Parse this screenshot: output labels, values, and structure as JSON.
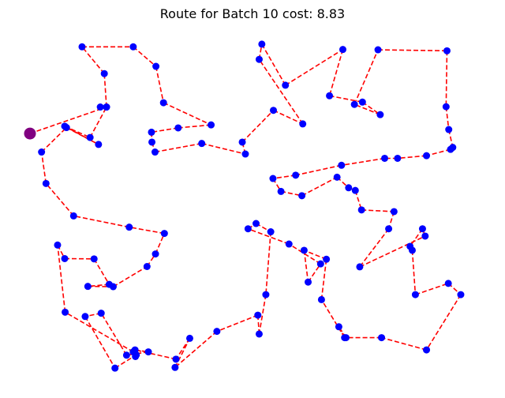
{
  "chart_data": {
    "type": "line",
    "title": "Route for Batch 10 cost: 8.83",
    "xlabel": "",
    "ylabel": "",
    "axes_visible": false,
    "grid": false,
    "depot_color": "#800080",
    "node_color": "#0000ff",
    "route_color": "#ff0000",
    "route_style": "dashed",
    "depot": [
      0.0,
      0.723
    ],
    "route": [
      [
        0.0,
        0.723
      ],
      [
        0.172,
        0.803
      ],
      [
        0.167,
        0.904
      ],
      [
        0.117,
        0.985
      ],
      [
        0.232,
        0.985
      ],
      [
        0.283,
        0.926
      ],
      [
        0.3,
        0.816
      ],
      [
        0.407,
        0.749
      ],
      [
        0.333,
        0.74
      ],
      [
        0.273,
        0.727
      ],
      [
        0.274,
        0.697
      ],
      [
        0.281,
        0.667
      ],
      [
        0.386,
        0.693
      ],
      [
        0.484,
        0.661
      ],
      [
        0.477,
        0.697
      ],
      [
        0.547,
        0.793
      ],
      [
        0.613,
        0.752
      ],
      [
        0.515,
        0.947
      ],
      [
        0.521,
        0.993
      ],
      [
        0.574,
        0.869
      ],
      [
        0.703,
        0.977
      ],
      [
        0.673,
        0.837
      ],
      [
        0.747,
        0.818
      ],
      [
        0.787,
        0.78
      ],
      [
        0.729,
        0.811
      ],
      [
        0.782,
        0.976
      ],
      [
        0.937,
        0.973
      ],
      [
        0.935,
        0.804
      ],
      [
        0.941,
        0.735
      ],
      [
        0.95,
        0.681
      ],
      [
        0.945,
        0.675
      ],
      [
        0.891,
        0.656
      ],
      [
        0.826,
        0.648
      ],
      [
        0.797,
        0.648
      ],
      [
        0.7,
        0.627
      ],
      [
        0.597,
        0.597
      ],
      [
        0.546,
        0.587
      ],
      [
        0.564,
        0.548
      ],
      [
        0.611,
        0.535
      ],
      [
        0.69,
        0.591
      ],
      [
        0.716,
        0.559
      ],
      [
        0.731,
        0.551
      ],
      [
        0.745,
        0.492
      ],
      [
        0.818,
        0.487
      ],
      [
        0.806,
        0.435
      ],
      [
        0.741,
        0.32
      ],
      [
        0.888,
        0.413
      ],
      [
        0.882,
        0.435
      ],
      [
        0.854,
        0.382
      ],
      [
        0.859,
        0.37
      ],
      [
        0.866,
        0.236
      ],
      [
        0.94,
        0.27
      ],
      [
        0.968,
        0.236
      ],
      [
        0.891,
        0.069
      ],
      [
        0.79,
        0.106
      ],
      [
        0.71,
        0.106
      ],
      [
        0.694,
        0.139
      ],
      [
        0.707,
        0.106
      ],
      [
        0.655,
        0.221
      ],
      [
        0.666,
        0.343
      ],
      [
        0.616,
        0.37
      ],
      [
        0.625,
        0.274
      ],
      [
        0.653,
        0.329
      ],
      [
        0.582,
        0.389
      ],
      [
        0.49,
        0.435
      ],
      [
        0.508,
        0.451
      ],
      [
        0.541,
        0.426
      ],
      [
        0.53,
        0.236
      ],
      [
        0.515,
        0.117
      ],
      [
        0.512,
        0.174
      ],
      [
        0.42,
        0.125
      ],
      [
        0.326,
        0.016
      ],
      [
        0.359,
        0.104
      ],
      [
        0.328,
        0.041
      ],
      [
        0.236,
        0.069
      ],
      [
        0.266,
        0.063
      ],
      [
        0.217,
        0.053
      ],
      [
        0.16,
        0.18
      ],
      [
        0.124,
        0.17
      ],
      [
        0.191,
        0.014
      ],
      [
        0.239,
        0.054
      ],
      [
        0.237,
        0.049
      ],
      [
        0.232,
        0.063
      ],
      [
        0.079,
        0.183
      ],
      [
        0.062,
        0.386
      ],
      [
        0.078,
        0.345
      ],
      [
        0.144,
        0.344
      ],
      [
        0.178,
        0.267
      ],
      [
        0.13,
        0.261
      ],
      [
        0.187,
        0.26
      ],
      [
        0.263,
        0.321
      ],
      [
        0.282,
        0.359
      ],
      [
        0.302,
        0.421
      ],
      [
        0.223,
        0.44
      ],
      [
        0.098,
        0.474
      ],
      [
        0.036,
        0.572
      ],
      [
        0.026,
        0.667
      ],
      [
        0.082,
        0.741
      ],
      [
        0.154,
        0.69
      ],
      [
        0.078,
        0.745
      ],
      [
        0.135,
        0.711
      ],
      [
        0.172,
        0.803
      ],
      [
        0.158,
        0.803
      ]
    ]
  }
}
